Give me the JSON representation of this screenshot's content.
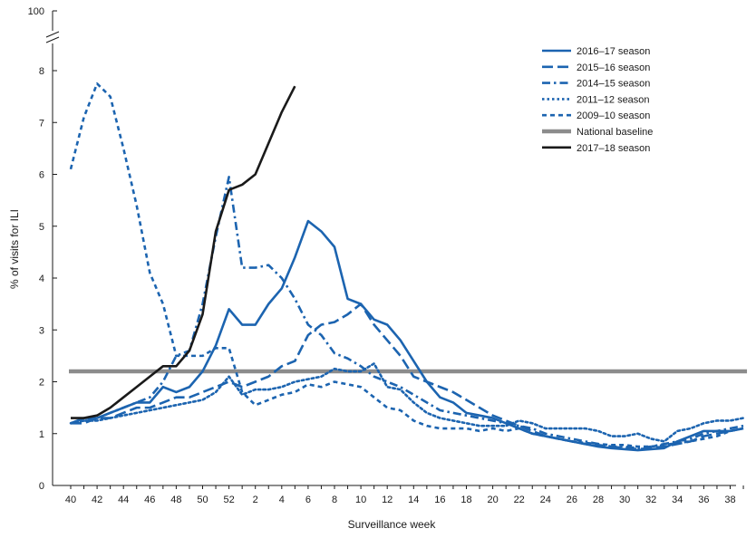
{
  "chart_data": {
    "type": "line",
    "title": "",
    "xlabel": "Surveillance week",
    "ylabel": "% of visits for ILI",
    "ylim": [
      0,
      8
    ],
    "y_ticks": [
      0,
      1,
      2,
      3,
      4,
      5,
      6,
      7,
      8
    ],
    "y_break_top_label": "100",
    "x_weeks": [
      40,
      41,
      42,
      43,
      44,
      45,
      46,
      47,
      48,
      49,
      50,
      51,
      52,
      1,
      2,
      3,
      4,
      5,
      6,
      7,
      8,
      9,
      10,
      11,
      12,
      13,
      14,
      15,
      16,
      17,
      18,
      19,
      20,
      21,
      22,
      23,
      24,
      25,
      26,
      27,
      28,
      29,
      30,
      31,
      32,
      33,
      34,
      35,
      36,
      37,
      38,
      39
    ],
    "x_tick_labels": [
      "40",
      "42",
      "44",
      "46",
      "48",
      "50",
      "52",
      "2",
      "4",
      "6",
      "8",
      "10",
      "12",
      "14",
      "16",
      "18",
      "20",
      "22",
      "24",
      "26",
      "28",
      "30",
      "32",
      "34",
      "36",
      "38"
    ],
    "legend_position": "top-right",
    "series": [
      {
        "name": "2016–17 season",
        "color": "#1c64b0",
        "dash": "solid",
        "values": [
          1.2,
          1.3,
          1.3,
          1.4,
          1.5,
          1.6,
          1.6,
          1.9,
          1.8,
          1.9,
          2.2,
          2.7,
          3.4,
          3.1,
          3.1,
          3.5,
          3.8,
          4.4,
          5.1,
          4.9,
          4.6,
          3.6,
          3.5,
          3.2,
          3.1,
          2.8,
          2.4,
          2.0,
          1.7,
          1.6,
          1.4,
          1.35,
          1.3,
          1.2,
          1.1,
          1.0,
          0.95,
          0.9,
          0.85,
          0.8,
          0.75,
          0.72,
          0.7,
          0.68,
          0.7,
          0.72,
          0.85,
          0.95,
          1.05,
          1.05,
          1.05,
          1.1
        ]
      },
      {
        "name": "2015–16 season",
        "color": "#1c64b0",
        "dash": "longdash",
        "values": [
          1.2,
          1.2,
          1.3,
          1.3,
          1.4,
          1.5,
          1.5,
          1.6,
          1.7,
          1.7,
          1.8,
          1.9,
          2.0,
          1.9,
          2.0,
          2.1,
          2.3,
          2.4,
          2.9,
          3.1,
          3.15,
          3.3,
          3.5,
          3.1,
          2.8,
          2.5,
          2.1,
          2.0,
          1.9,
          1.8,
          1.65,
          1.5,
          1.35,
          1.25,
          1.15,
          1.05,
          0.95,
          0.9,
          0.85,
          0.8,
          0.78,
          0.75,
          0.72,
          0.7,
          0.72,
          0.75,
          0.8,
          0.85,
          0.95,
          1.0,
          1.05,
          1.1
        ]
      },
      {
        "name": "2014–15 season",
        "color": "#1c64b0",
        "dash": "dashdot",
        "values": [
          1.2,
          1.25,
          1.3,
          1.4,
          1.5,
          1.6,
          1.7,
          2.0,
          2.5,
          2.6,
          3.5,
          4.8,
          5.95,
          4.2,
          4.2,
          4.25,
          4.0,
          3.6,
          3.1,
          2.9,
          2.55,
          2.45,
          2.3,
          2.1,
          2.0,
          1.9,
          1.75,
          1.6,
          1.45,
          1.4,
          1.35,
          1.3,
          1.25,
          1.2,
          1.15,
          1.1,
          1.0,
          0.95,
          0.9,
          0.85,
          0.8,
          0.75,
          0.75,
          0.72,
          0.75,
          0.8,
          0.85,
          0.9,
          1.0,
          1.05,
          1.1,
          1.15
        ]
      },
      {
        "name": "2011–12 season",
        "color": "#1c64b0",
        "dash": "dotted",
        "values": [
          1.2,
          1.25,
          1.25,
          1.3,
          1.35,
          1.4,
          1.45,
          1.5,
          1.55,
          1.6,
          1.65,
          1.8,
          2.1,
          1.75,
          1.85,
          1.85,
          1.9,
          2.0,
          2.05,
          2.1,
          2.25,
          2.2,
          2.2,
          2.35,
          1.9,
          1.85,
          1.6,
          1.4,
          1.3,
          1.25,
          1.2,
          1.15,
          1.15,
          1.15,
          1.25,
          1.2,
          1.1,
          1.1,
          1.1,
          1.1,
          1.05,
          0.95,
          0.95,
          1.0,
          0.9,
          0.85,
          1.05,
          1.1,
          1.2,
          1.25,
          1.25,
          1.3
        ]
      },
      {
        "name": "2009–10 season",
        "color": "#1c64b0",
        "dash": "shortdash",
        "values": [
          6.1,
          7.1,
          7.75,
          7.5,
          6.5,
          5.4,
          4.1,
          3.5,
          2.5,
          2.5,
          2.5,
          2.65,
          2.65,
          1.8,
          1.55,
          1.65,
          1.75,
          1.8,
          1.95,
          1.9,
          2.0,
          1.95,
          1.9,
          1.7,
          1.5,
          1.45,
          1.25,
          1.15,
          1.1,
          1.1,
          1.1,
          1.05,
          1.1,
          1.05,
          1.1,
          1.0,
          0.95,
          0.9,
          0.85,
          0.82,
          0.8,
          0.78,
          0.78,
          0.75,
          0.75,
          0.78,
          0.82,
          0.85,
          0.9,
          0.95,
          1.05,
          1.1
        ]
      },
      {
        "name": "National baseline",
        "color": "#8c8c8c",
        "dash": "baseline",
        "values": [
          2.2,
          2.2,
          2.2,
          2.2,
          2.2,
          2.2,
          2.2,
          2.2,
          2.2,
          2.2,
          2.2,
          2.2,
          2.2,
          2.2,
          2.2,
          2.2,
          2.2,
          2.2,
          2.2,
          2.2,
          2.2,
          2.2,
          2.2,
          2.2,
          2.2,
          2.2,
          2.2,
          2.2,
          2.2,
          2.2,
          2.2,
          2.2,
          2.2,
          2.2,
          2.2,
          2.2,
          2.2,
          2.2,
          2.2,
          2.2,
          2.2,
          2.2,
          2.2,
          2.2,
          2.2,
          2.2,
          2.2,
          2.2,
          2.2,
          2.2,
          2.2,
          2.2
        ]
      },
      {
        "name": "2017–18 season",
        "color": "#1a1a1a",
        "dash": "solid-thick",
        "values": [
          1.3,
          1.3,
          1.35,
          1.5,
          1.7,
          1.9,
          2.1,
          2.3,
          2.3,
          2.6,
          3.3,
          4.9,
          5.7,
          5.8,
          6.0,
          6.6,
          7.2,
          7.7
        ]
      }
    ]
  }
}
